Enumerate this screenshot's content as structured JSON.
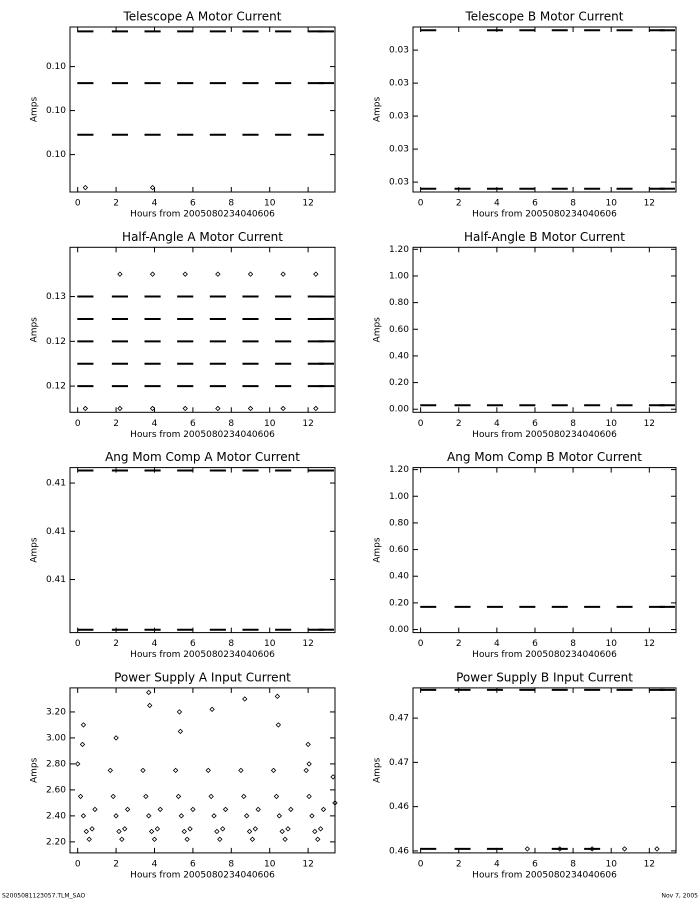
{
  "chart_data": [
    {
      "type": "scatter",
      "title": "Telescope A Motor Current",
      "xlabel": "Hours from 2005080234040606",
      "ylabel": "Amps",
      "xlim": [
        -0.4,
        13.4
      ],
      "xticks": [
        0,
        2,
        4,
        6,
        8,
        10,
        12
      ],
      "ylim": [
        0.09926,
        0.10076
      ],
      "yticks": [
        {
          "value": 0.0996,
          "label": "0.10"
        },
        {
          "value": 0.1,
          "label": "0.10"
        },
        {
          "value": 0.1004,
          "label": "0.10"
        }
      ],
      "x": [
        0.4,
        2.2,
        3.9,
        5.6,
        7.3,
        9.0,
        10.7,
        12.4,
        12.95
      ],
      "series": [
        {
          "color": "#000000",
          "marker": "dash",
          "values": [
            0.10072,
            0.10072,
            0.10072,
            0.10072,
            0.10072,
            0.10072,
            0.10072,
            0.10072,
            0.10072
          ]
        },
        {
          "color": "#000000",
          "marker": "dash",
          "values": [
            0.10025,
            0.10025,
            0.10025,
            0.10025,
            0.10025,
            0.10025,
            0.10025,
            0.10025,
            0.10025
          ]
        },
        {
          "color": "#000000",
          "marker": "dash",
          "values": [
            0.09978,
            0.09978,
            0.09978,
            0.09978,
            0.09978,
            0.09978,
            0.09978,
            0.09978,
            null
          ]
        },
        {
          "color": "#000000",
          "marker": "dot",
          "values": [
            0.0993,
            null,
            0.0993,
            null,
            null,
            null,
            null,
            null,
            null
          ]
        }
      ]
    },
    {
      "type": "scatter",
      "title": "Telescope B Motor Current",
      "xlabel": "Hours from 2005080234040606",
      "ylabel": "Amps",
      "xlim": [
        -0.4,
        13.4
      ],
      "xticks": [
        0,
        2,
        4,
        6,
        8,
        10,
        12
      ],
      "ylim": [
        0.02997,
        0.03047
      ],
      "yticks": [
        {
          "value": 0.03,
          "label": "0.03"
        },
        {
          "value": 0.0301,
          "label": "0.03"
        },
        {
          "value": 0.0302,
          "label": "0.03"
        },
        {
          "value": 0.0303,
          "label": "0.03"
        },
        {
          "value": 0.0304,
          "label": "0.03"
        }
      ],
      "x": [
        0.4,
        2.2,
        3.9,
        5.6,
        7.3,
        9.0,
        10.7,
        12.4,
        12.95
      ],
      "series": [
        {
          "color": "#000000",
          "marker": "dash",
          "values": [
            0.03046,
            null,
            0.03046,
            0.03046,
            0.03046,
            0.03046,
            0.03046,
            0.03046,
            0.03046
          ]
        },
        {
          "color": "#000000",
          "marker": "dash",
          "values": [
            0.02998,
            0.02998,
            0.02998,
            0.02998,
            0.02998,
            0.02998,
            0.02998,
            0.02998,
            0.02998
          ]
        }
      ]
    },
    {
      "type": "scatter",
      "title": "Half-Angle A Motor Current",
      "xlabel": "Hours from 2005080234040606",
      "ylabel": "Amps",
      "xlim": [
        -0.4,
        13.4
      ],
      "xticks": [
        0,
        2,
        4,
        6,
        8,
        10,
        12
      ],
      "ylim": [
        0.12083,
        0.1282
      ],
      "yticks": [
        {
          "value": 0.122,
          "label": "0.12"
        },
        {
          "value": 0.124,
          "label": "0.12"
        },
        {
          "value": 0.126,
          "label": "0.13"
        }
      ],
      "x": [
        0.4,
        2.2,
        3.9,
        5.6,
        7.3,
        9.0,
        10.7,
        12.4,
        12.95
      ],
      "series": [
        {
          "color": "#000000",
          "marker": "dot",
          "values": [
            null,
            0.127,
            0.127,
            0.127,
            0.127,
            0.127,
            0.127,
            0.127,
            null
          ]
        },
        {
          "color": "#000000",
          "marker": "dash",
          "values": [
            0.126,
            0.126,
            0.126,
            0.126,
            0.126,
            0.126,
            0.126,
            0.126,
            0.126
          ]
        },
        {
          "color": "#000000",
          "marker": "dash",
          "values": [
            0.125,
            0.125,
            0.125,
            0.125,
            0.125,
            0.125,
            0.125,
            0.125,
            0.125
          ]
        },
        {
          "color": "#000000",
          "marker": "dash",
          "values": [
            0.124,
            0.124,
            0.124,
            0.124,
            0.124,
            0.124,
            0.124,
            0.124,
            0.124
          ]
        },
        {
          "color": "#000000",
          "marker": "dash",
          "values": [
            0.123,
            0.123,
            0.123,
            0.123,
            0.123,
            0.123,
            0.123,
            0.123,
            0.123
          ]
        },
        {
          "color": "#000000",
          "marker": "dash",
          "values": [
            0.122,
            0.122,
            0.122,
            0.122,
            0.122,
            0.122,
            0.122,
            0.122,
            0.122
          ]
        },
        {
          "color": "#000000",
          "marker": "dot",
          "values": [
            0.121,
            0.121,
            0.121,
            0.121,
            0.121,
            0.121,
            0.121,
            0.121,
            null
          ]
        }
      ]
    },
    {
      "type": "scatter",
      "title": "Half-Angle B Motor Current",
      "xlabel": "Hours from 2005080234040606",
      "ylabel": "Amps",
      "xlim": [
        -0.4,
        13.4
      ],
      "xticks": [
        0,
        2,
        4,
        6,
        8,
        10,
        12
      ],
      "ylim": [
        -0.023,
        1.215
      ],
      "yticks": [
        {
          "value": 0,
          "label": "0.00"
        },
        {
          "value": 0.2,
          "label": "0.20"
        },
        {
          "value": 0.4,
          "label": "0.40"
        },
        {
          "value": 0.6,
          "label": "0.60"
        },
        {
          "value": 0.8,
          "label": "0.80"
        },
        {
          "value": 1,
          "label": "1.00"
        },
        {
          "value": 1.2,
          "label": "1.20"
        }
      ],
      "x": [
        0.4,
        2.2,
        3.9,
        5.6,
        7.3,
        9.0,
        10.7,
        12.4,
        12.95
      ],
      "series": [
        {
          "color": "#000000",
          "marker": "dash",
          "values": [
            0.03,
            0.03,
            0.03,
            0.03,
            0.03,
            0.03,
            0.03,
            0.03,
            0.03
          ]
        }
      ]
    },
    {
      "type": "scatter",
      "title": "Ang Mom Comp A Motor Current",
      "xlabel": "Hours from 2005080234040606",
      "ylabel": "Amps",
      "xlim": [
        -0.4,
        13.4
      ],
      "xticks": [
        0,
        2,
        4,
        6,
        8,
        10,
        12
      ],
      "ylim": [
        0.40895,
        0.41066
      ],
      "yticks": [
        {
          "value": 0.4095,
          "label": "0.41"
        },
        {
          "value": 0.41,
          "label": "0.41"
        },
        {
          "value": 0.4105,
          "label": "0.41"
        }
      ],
      "x": [
        0.4,
        2.2,
        3.9,
        5.6,
        7.3,
        9.0,
        10.7,
        12.4,
        12.95
      ],
      "series": [
        {
          "color": "#000000",
          "marker": "dash",
          "values": [
            0.41063,
            0.41063,
            0.41063,
            0.41063,
            0.41063,
            0.41063,
            0.41063,
            0.41063,
            0.41063
          ]
        },
        {
          "color": "#000000",
          "marker": "dash",
          "values": [
            0.40898,
            0.40898,
            0.40898,
            0.40898,
            0.40898,
            0.40898,
            0.40898,
            0.40898,
            0.40898
          ]
        }
      ]
    },
    {
      "type": "scatter",
      "title": "Ang Mom Comp B Motor Current",
      "xlabel": "Hours from 2005080234040606",
      "ylabel": "Amps",
      "xlim": [
        -0.4,
        13.4
      ],
      "xticks": [
        0,
        2,
        4,
        6,
        8,
        10,
        12
      ],
      "ylim": [
        -0.023,
        1.215
      ],
      "yticks": [
        {
          "value": 0,
          "label": "0.00"
        },
        {
          "value": 0.2,
          "label": "0.20"
        },
        {
          "value": 0.4,
          "label": "0.40"
        },
        {
          "value": 0.6,
          "label": "0.60"
        },
        {
          "value": 0.8,
          "label": "0.80"
        },
        {
          "value": 1,
          "label": "1.00"
        },
        {
          "value": 1.2,
          "label": "1.20"
        }
      ],
      "x": [
        0.4,
        2.2,
        3.9,
        5.6,
        7.3,
        9.0,
        10.7,
        12.4,
        12.95
      ],
      "series": [
        {
          "color": "#000000",
          "marker": "dash",
          "values": [
            0.17,
            0.17,
            0.17,
            0.17,
            0.17,
            0.17,
            0.17,
            0.17,
            0.17
          ]
        }
      ]
    },
    {
      "type": "scatter",
      "title": "Power Supply A Input Current",
      "xlabel": "Hours from 2005080234040606",
      "ylabel": "Amps",
      "xlim": [
        -0.4,
        13.4
      ],
      "xticks": [
        0,
        2,
        4,
        6,
        8,
        10,
        12
      ],
      "ylim": [
        2.115,
        3.385
      ],
      "yticks": [
        {
          "value": 2.2,
          "label": "2.20"
        },
        {
          "value": 2.4,
          "label": "2.40"
        },
        {
          "value": 2.6,
          "label": "2.60"
        },
        {
          "value": 2.8,
          "label": "2.80"
        },
        {
          "value": 3,
          "label": "3.00"
        },
        {
          "value": 3.2,
          "label": "3.20"
        }
      ],
      "x": [
        0,
        0.15,
        0.3,
        0.45,
        0.6,
        0.75,
        0.9,
        1.7,
        1.85,
        2,
        2.15,
        2.3,
        2.45,
        2.6,
        3.4,
        3.55,
        3.7,
        3.85,
        4,
        4.15,
        4.3,
        5.1,
        5.25,
        5.4,
        5.55,
        5.7,
        5.85,
        6,
        6.8,
        6.95,
        7.1,
        7.25,
        7.4,
        7.55,
        7.7,
        8.5,
        8.65,
        8.8,
        8.95,
        9.1,
        9.25,
        9.4,
        10.2,
        10.35,
        10.5,
        10.65,
        10.8,
        10.95,
        11.1,
        11.9,
        12.05,
        12.2,
        12.35,
        12.5,
        12.65,
        12.8,
        13.3,
        13.4,
        0.3,
        0.25,
        2.0,
        3.7,
        3.75,
        5.3,
        5.35,
        7.0,
        8.7,
        10.4,
        10.45,
        12.0,
        12.05
      ],
      "series": [
        {
          "color": "#000000",
          "marker": "dot",
          "values": [
            2.8,
            2.55,
            2.4,
            2.28,
            2.22,
            2.3,
            2.45,
            2.75,
            2.55,
            2.4,
            2.28,
            2.22,
            2.3,
            2.45,
            2.75,
            2.55,
            2.4,
            2.28,
            2.22,
            2.3,
            2.45,
            2.75,
            2.55,
            2.4,
            2.28,
            2.22,
            2.3,
            2.45,
            2.75,
            2.55,
            2.4,
            2.28,
            2.22,
            2.3,
            2.45,
            2.75,
            2.55,
            2.4,
            2.28,
            2.22,
            2.3,
            2.45,
            2.75,
            2.55,
            2.4,
            2.28,
            2.22,
            2.3,
            2.45,
            2.75,
            2.55,
            2.4,
            2.28,
            2.22,
            2.3,
            2.45,
            2.7,
            2.5,
            3.1,
            2.95,
            3.0,
            3.35,
            3.25,
            3.2,
            3.05,
            3.22,
            3.3,
            3.32,
            3.1,
            2.95,
            2.8
          ]
        }
      ]
    },
    {
      "type": "scatter",
      "title": "Power Supply B Input Current",
      "xlabel": "Hours from 2005080234040606",
      "ylabel": "Amps",
      "xlim": [
        -0.4,
        13.4
      ],
      "xticks": [
        0,
        2,
        4,
        6,
        8,
        10,
        12
      ],
      "ylim": [
        0.45982,
        0.47473
      ],
      "yticks": [
        {
          "value": 0.46,
          "label": "0.46"
        },
        {
          "value": 0.464,
          "label": "0.46"
        },
        {
          "value": 0.468,
          "label": "0.47"
        },
        {
          "value": 0.472,
          "label": "0.47"
        }
      ],
      "x": [
        0.4,
        2.2,
        3.9,
        5.6,
        7.3,
        9.0,
        10.7,
        12.4,
        12.95
      ],
      "series": [
        {
          "color": "#000000",
          "marker": "dash",
          "values": [
            0.47455,
            0.47455,
            0.47455,
            0.47455,
            0.47455,
            0.47455,
            0.47455,
            0.47455,
            0.47455
          ]
        },
        {
          "color": "#000000",
          "marker": "dash",
          "values": [
            0.46018,
            0.46018,
            0.46018,
            null,
            0.46018,
            0.46018,
            null,
            null,
            null
          ]
        },
        {
          "color": "#000000",
          "marker": "dot",
          "values": [
            null,
            null,
            null,
            0.46018,
            0.46018,
            0.46018,
            0.46018,
            0.46018,
            null
          ]
        }
      ]
    }
  ],
  "footer": {
    "left": "S2005081123057.TLM_SAO",
    "right": "Nov 7, 2005"
  }
}
